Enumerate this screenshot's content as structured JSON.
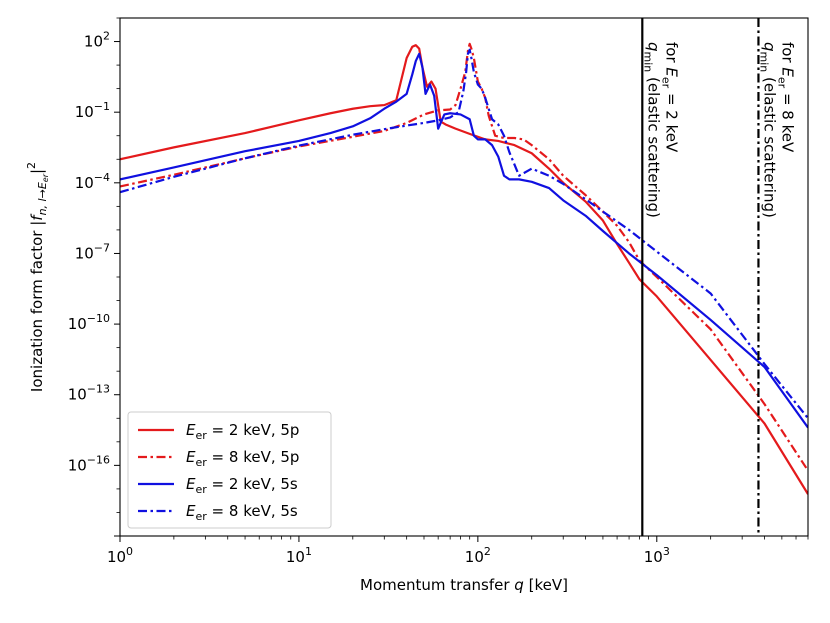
{
  "chart_data": {
    "type": "line",
    "xlabel": "Momentum transfer q [keV]",
    "ylabel": "Ionization form factor |f_{n,l→E_er}|^2",
    "xscale": "log",
    "yscale": "log",
    "xlim": [
      1,
      7000
    ],
    "ylim": [
      1e-19,
      1000.0
    ],
    "x_ticks": [
      {
        "value": 1,
        "base": "10",
        "exp": "0"
      },
      {
        "value": 10,
        "base": "10",
        "exp": "1"
      },
      {
        "value": 100,
        "base": "10",
        "exp": "2"
      },
      {
        "value": 1000,
        "base": "10",
        "exp": "3"
      }
    ],
    "y_ticks": [
      {
        "value": 100.0,
        "base": "10",
        "exp": "2"
      },
      {
        "value": 0.1,
        "base": "10",
        "exp": "−1"
      },
      {
        "value": 0.0001,
        "base": "10",
        "exp": "−4"
      },
      {
        "value": 1e-07,
        "base": "10",
        "exp": "−7"
      },
      {
        "value": 1e-10,
        "base": "10",
        "exp": "−10"
      },
      {
        "value": 1e-13,
        "base": "10",
        "exp": "−13"
      },
      {
        "value": 1e-16,
        "base": "10",
        "exp": "−16"
      }
    ],
    "grid": false,
    "legend_position": "lower-left",
    "series": [
      {
        "name": "E_er = 2 keV, 5p",
        "color": "#e41a1c",
        "dash": "solid",
        "points": [
          [
            1,
            0.001
          ],
          [
            2,
            0.0032
          ],
          [
            5,
            0.013
          ],
          [
            10,
            0.045
          ],
          [
            15,
            0.09
          ],
          [
            20,
            0.14
          ],
          [
            25,
            0.18
          ],
          [
            30,
            0.2
          ],
          [
            35,
            0.32
          ],
          [
            40,
            20.0
          ],
          [
            43,
            60.0
          ],
          [
            45,
            70.0
          ],
          [
            47,
            50.0
          ],
          [
            49,
            8.0
          ],
          [
            52,
            1.2
          ],
          [
            55,
            2.0
          ],
          [
            58,
            1.0
          ],
          [
            62,
            0.04
          ],
          [
            66,
            0.03
          ],
          [
            75,
            0.02
          ],
          [
            90,
            0.012
          ],
          [
            110,
            0.007
          ],
          [
            130,
            0.006
          ],
          [
            160,
            0.004
          ],
          [
            200,
            0.0018
          ],
          [
            250,
            0.0004
          ],
          [
            300,
            0.0001
          ],
          [
            400,
            1.6e-05
          ],
          [
            500,
            2.5e-06
          ],
          [
            600,
            2.5e-07
          ],
          [
            700,
            4e-08
          ],
          [
            800,
            8e-09
          ],
          [
            1000,
            1.5e-09
          ],
          [
            2000,
            3e-12
          ],
          [
            4000,
            6e-15
          ],
          [
            7000,
            6e-18
          ]
        ]
      },
      {
        "name": "E_er = 8 keV, 5p",
        "color": "#e41a1c",
        "dash": "dashdot",
        "points": [
          [
            1,
            7e-05
          ],
          [
            2,
            0.00022
          ],
          [
            5,
            0.0011
          ],
          [
            10,
            0.0035
          ],
          [
            20,
            0.009
          ],
          [
            30,
            0.016
          ],
          [
            40,
            0.035
          ],
          [
            50,
            0.08
          ],
          [
            60,
            0.12
          ],
          [
            70,
            0.13
          ],
          [
            75,
            0.2
          ],
          [
            80,
            1.0
          ],
          [
            85,
            5.0
          ],
          [
            88,
            40.0
          ],
          [
            90,
            80.0
          ],
          [
            92,
            50.0
          ],
          [
            95,
            20.0
          ],
          [
            100,
            2.0
          ],
          [
            105,
            1.0
          ],
          [
            110,
            0.4
          ],
          [
            115,
            0.07
          ],
          [
            125,
            0.01
          ],
          [
            140,
            0.008
          ],
          [
            160,
            0.008
          ],
          [
            180,
            0.007
          ],
          [
            200,
            0.004
          ],
          [
            250,
            0.001
          ],
          [
            300,
            0.0002
          ],
          [
            400,
            3e-05
          ],
          [
            500,
            6e-06
          ],
          [
            600,
            1.5e-06
          ],
          [
            700,
            3e-07
          ],
          [
            800,
            5e-08
          ],
          [
            1000,
            1e-08
          ],
          [
            2000,
            6e-11
          ],
          [
            4000,
            4e-14
          ],
          [
            7000,
            6e-17
          ]
        ]
      },
      {
        "name": "E_er = 2 keV, 5s",
        "color": "#1010e0",
        "dash": "solid",
        "points": [
          [
            1,
            0.00014
          ],
          [
            2,
            0.00045
          ],
          [
            5,
            0.0022
          ],
          [
            10,
            0.006
          ],
          [
            15,
            0.013
          ],
          [
            20,
            0.025
          ],
          [
            25,
            0.055
          ],
          [
            30,
            0.14
          ],
          [
            35,
            0.28
          ],
          [
            40,
            0.6
          ],
          [
            43,
            4.0
          ],
          [
            45,
            15.0
          ],
          [
            47,
            30.0
          ],
          [
            49,
            8.0
          ],
          [
            51,
            0.6
          ],
          [
            54,
            1.5
          ],
          [
            57,
            0.5
          ],
          [
            60,
            0.02
          ],
          [
            65,
            0.08
          ],
          [
            70,
            0.09
          ],
          [
            80,
            0.08
          ],
          [
            90,
            0.05
          ],
          [
            95,
            0.01
          ],
          [
            100,
            0.007
          ],
          [
            110,
            0.007
          ],
          [
            120,
            0.004
          ],
          [
            130,
            0.0013
          ],
          [
            140,
            0.0002
          ],
          [
            150,
            0.00014
          ],
          [
            170,
            0.00014
          ],
          [
            200,
            0.00011
          ],
          [
            250,
            6e-05
          ],
          [
            300,
            1.8e-05
          ],
          [
            400,
            4e-06
          ],
          [
            500,
            9e-07
          ],
          [
            700,
            1e-07
          ],
          [
            1000,
            1.2e-08
          ],
          [
            2000,
            1.5e-10
          ],
          [
            4000,
            1.5e-12
          ],
          [
            7000,
            4e-15
          ]
        ]
      },
      {
        "name": "E_er = 8 keV, 5s",
        "color": "#1010e0",
        "dash": "dashdot",
        "points": [
          [
            1,
            4e-05
          ],
          [
            2,
            0.00018
          ],
          [
            5,
            0.0011
          ],
          [
            10,
            0.0038
          ],
          [
            20,
            0.011
          ],
          [
            30,
            0.019
          ],
          [
            40,
            0.027
          ],
          [
            50,
            0.035
          ],
          [
            60,
            0.045
          ],
          [
            70,
            0.06
          ],
          [
            78,
            0.1
          ],
          [
            83,
            0.8
          ],
          [
            86,
            5.0
          ],
          [
            88,
            30.0
          ],
          [
            90,
            45.0
          ],
          [
            92,
            20.0
          ],
          [
            95,
            5.0
          ],
          [
            100,
            1.5
          ],
          [
            105,
            1.0
          ],
          [
            110,
            0.4
          ],
          [
            120,
            0.05
          ],
          [
            130,
            0.03
          ],
          [
            140,
            0.01
          ],
          [
            150,
            0.002
          ],
          [
            170,
            0.0002
          ],
          [
            200,
            0.0004
          ],
          [
            250,
            0.0002
          ],
          [
            300,
            9e-05
          ],
          [
            400,
            2e-05
          ],
          [
            500,
            6e-06
          ],
          [
            700,
            1e-06
          ],
          [
            1000,
            1.2e-07
          ],
          [
            2000,
            2e-09
          ],
          [
            4000,
            2e-12
          ],
          [
            7000,
            1e-14
          ]
        ]
      }
    ],
    "vertical_lines": [
      {
        "x": 830,
        "dash": "solid",
        "label_line1": "q_min (elastic scattering)",
        "label_line2": "for E_er = 2 keV",
        "line1_main": "q",
        "line1_sub": "min",
        "line1_rest": " (elastic scattering)",
        "line2_pre": "for ",
        "line2_main": "E",
        "line2_sub": "er",
        "line2_rest": " = 2 keV"
      },
      {
        "x": 3700,
        "dash": "dashdot",
        "label_line1": "q_min (elastic scattering)",
        "label_line2": "for E_er = 8 keV",
        "line1_main": "q",
        "line1_sub": "min",
        "line1_rest": " (elastic scattering)",
        "line2_pre": "for ",
        "line2_main": "E",
        "line2_sub": "er",
        "line2_rest": " = 8 keV"
      }
    ],
    "legend": [
      {
        "main": "E",
        "sub": "er",
        "rest": " = 2 keV, 5p"
      },
      {
        "main": "E",
        "sub": "er",
        "rest": " = 8 keV, 5p"
      },
      {
        "main": "E",
        "sub": "er",
        "rest": " = 2 keV, 5s"
      },
      {
        "main": "E",
        "sub": "er",
        "rest": " = 8 keV, 5s"
      }
    ],
    "axis_text": {
      "x_prefix": "Momentum transfer ",
      "x_var": "q",
      "x_suffix": " [keV]",
      "y_prefix": "Ionization form factor |",
      "y_var": "f",
      "y_sub": "n, l→E",
      "y_subsub": "er",
      "y_suffix": "|",
      "y_sup": "2"
    }
  }
}
